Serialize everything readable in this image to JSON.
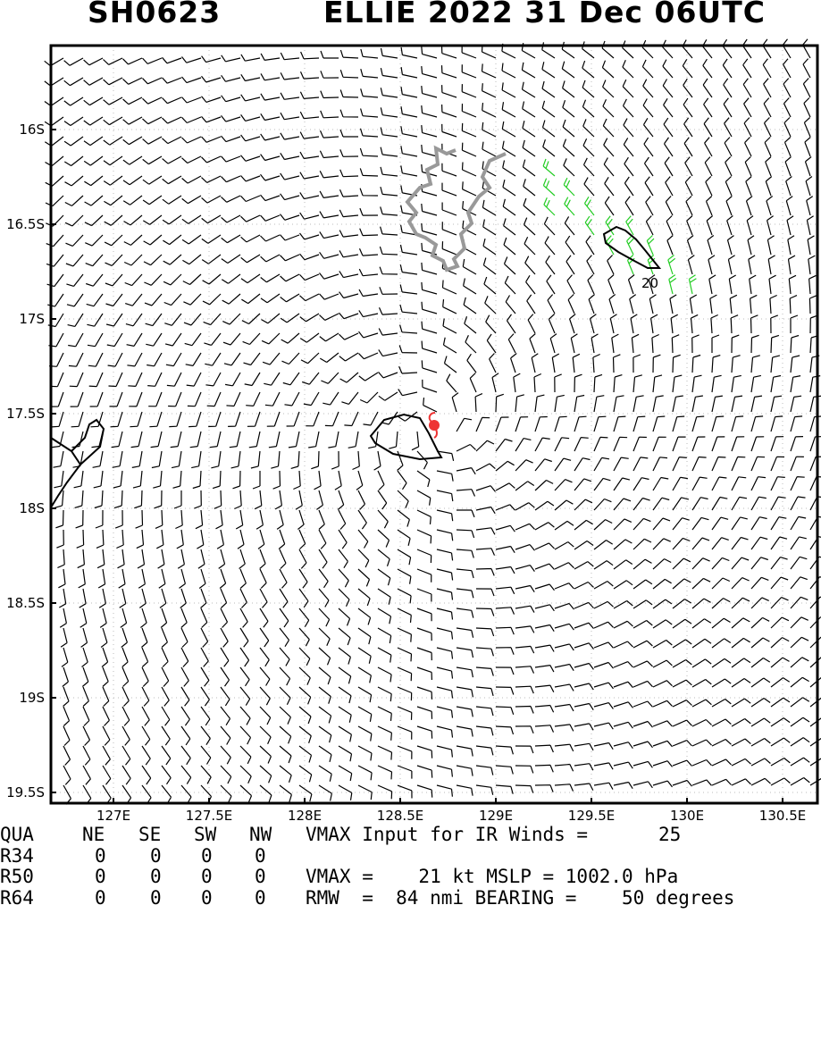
{
  "title": {
    "storm_id": "SH0623",
    "storm_info": "ELLIE 2022 31 Dec 06UTC"
  },
  "map": {
    "lat_labels": [
      "16S",
      "16.5S",
      "17S",
      "17.5S",
      "18S",
      "18.5S",
      "19S",
      "19.5S"
    ],
    "lon_labels": [
      "127E",
      "127.5E",
      "128E",
      "128.5E",
      "129E",
      "129.5E",
      "130E",
      "130.5E"
    ],
    "contour_label": "20",
    "colors": {
      "barbs": "#000000",
      "high_wind_barbs": "#22cc22",
      "land_outline": "#999999",
      "storm_center": "#ee3333",
      "contour": "#000000"
    }
  },
  "table": {
    "header": [
      "QUA",
      "NE",
      "SE",
      "SW",
      "NW"
    ],
    "rows": [
      {
        "label": "R34",
        "values": [
          "0",
          "0",
          "0",
          "0"
        ]
      },
      {
        "label": "R50",
        "values": [
          "0",
          "0",
          "0",
          "0"
        ]
      },
      {
        "label": "R64",
        "values": [
          "0",
          "0",
          "0",
          "0"
        ]
      }
    ],
    "vmax_input_text": "VMAX Input for IR Winds =",
    "vmax_input_value": "25",
    "vmax_line": "VMAX =    21 kt MSLP = 1002.0 hPa",
    "rmw_line": "RMW  =  84 nmi BEARING =    50 degrees"
  }
}
